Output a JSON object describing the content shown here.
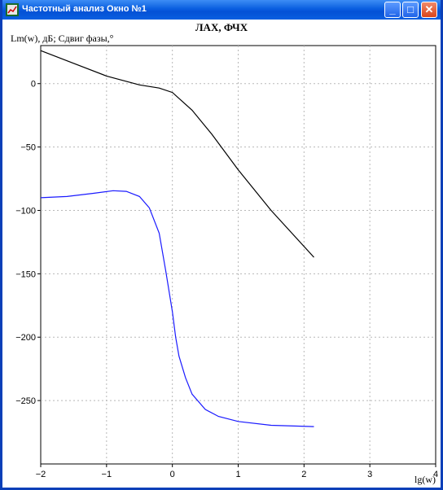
{
  "window": {
    "title": "Частотный анализ Окно №1",
    "controls": {
      "minimize": "_",
      "maximize": "□",
      "close": "✕"
    },
    "app_icon": "chart-app-icon"
  },
  "chart_data": {
    "type": "line",
    "title": "ЛАХ, ФЧХ",
    "ylabel": "Lm(w), дБ; Сдвиг фазы,°",
    "xlabel": "lg(w)",
    "xlim": [
      -2,
      4
    ],
    "ylim": [
      -300,
      30
    ],
    "xticks": [
      -2,
      -1,
      0,
      1,
      2,
      3,
      4
    ],
    "yticks": [
      0,
      -50,
      -100,
      -150,
      -200,
      -250
    ],
    "grid": true,
    "series": [
      {
        "color": "#000000",
        "x": [
          -2,
          -1.5,
          -1,
          -0.5,
          -0.2,
          0,
          0.3,
          0.6,
          1,
          1.5,
          2.15
        ],
        "y": [
          26,
          16,
          6,
          -1,
          -3.5,
          -7,
          -21,
          -40,
          -68,
          -100,
          -137
        ]
      },
      {
        "color": "#1a1aff",
        "x": [
          -2,
          -1.6,
          -1.2,
          -0.9,
          -0.7,
          -0.5,
          -0.35,
          -0.2,
          -0.1,
          0,
          0.05,
          0.1,
          0.2,
          0.3,
          0.5,
          0.7,
          1,
          1.5,
          2.15
        ],
        "y": [
          -90,
          -89,
          -86.5,
          -84.5,
          -85,
          -89,
          -98,
          -118,
          -148,
          -180,
          -200,
          -215,
          -232,
          -245,
          -257,
          -262.5,
          -266.5,
          -269.5,
          -270.5
        ]
      }
    ]
  }
}
